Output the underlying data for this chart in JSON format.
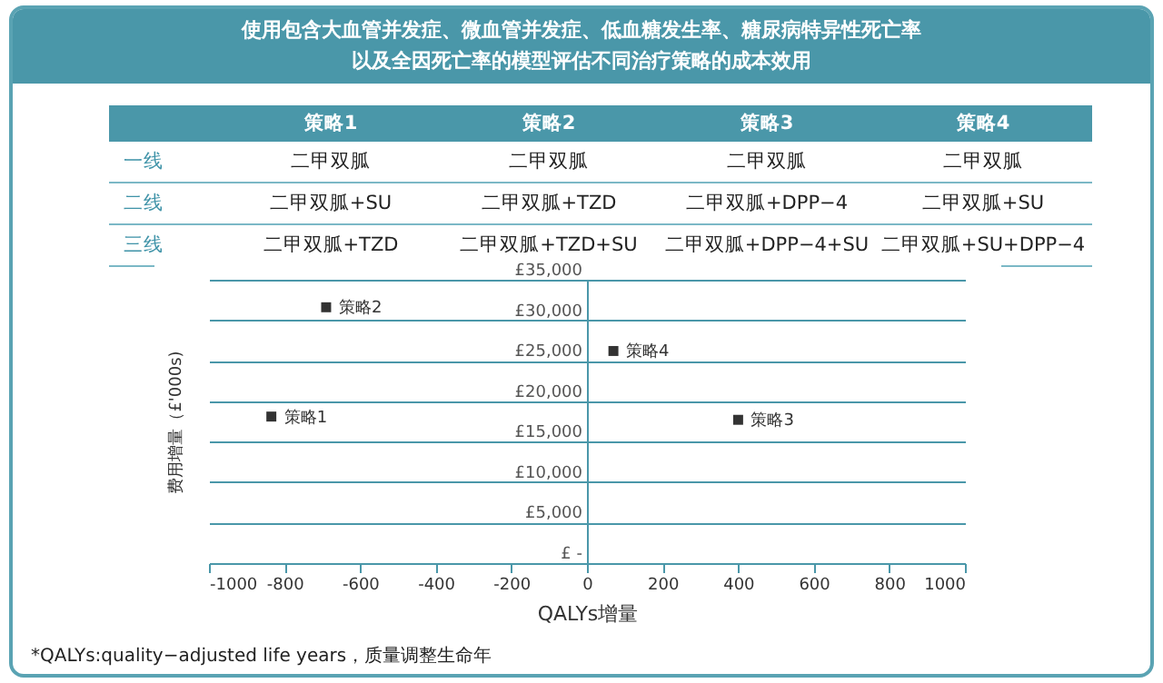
{
  "chart_data": {
    "type": "scatter",
    "title": "使用包含大血管并发症、微血管并发症、低血糖发生率、糖尿病特异性死亡率以及全因死亡率的模型评估不同治疗策略的成本效用",
    "xlabel": "QALYs增量",
    "ylabel": "费用增量（£'000s)",
    "xlim": [
      -1000,
      1000
    ],
    "xticks": [
      -1000,
      -800,
      -600,
      -400,
      -200,
      0,
      200,
      400,
      600,
      800,
      1000
    ],
    "ylim": [
      0,
      35000
    ],
    "yticks": [
      {
        "value": 0,
        "label": "£ -"
      },
      {
        "value": 5000,
        "label": "£5,000"
      },
      {
        "value": 10000,
        "label": "£10,000"
      },
      {
        "value": 15000,
        "label": "£15,000"
      },
      {
        "value": 20000,
        "label": "£20,000"
      },
      {
        "value": 25000,
        "label": "£25,000"
      },
      {
        "value": 30000,
        "label": "£30,000"
      },
      {
        "value": 35000,
        "label": "£35,000"
      }
    ],
    "grid": "y",
    "marker": "square",
    "series": [
      {
        "name": "策略1",
        "color": "#333333",
        "x": [
          -835
        ],
        "values": [
          18100
        ]
      },
      {
        "name": "策略2",
        "color": "#333333",
        "x": [
          -690
        ],
        "values": [
          31600
        ]
      },
      {
        "name": "策略3",
        "color": "#333333",
        "x": [
          400
        ],
        "values": [
          17700
        ]
      },
      {
        "name": "策略4",
        "color": "#333333",
        "x": [
          70
        ],
        "values": [
          26200
        ]
      }
    ],
    "annotations": [
      "策略1",
      "策略2",
      "策略3",
      "策略4",
      "一线",
      "二甲双胍",
      "二甲双胍",
      "二甲双胍",
      "二甲双胍",
      "二线",
      "二甲双胍+SU",
      "二甲双胍+TZD",
      "二甲双胍+DPP−4",
      "二甲双胍+SU",
      "三线",
      "二甲双胍+TZD",
      "二甲双胍+TZD+SU",
      "二甲双胍+DPP−4+SU",
      "二甲双胍+SU+DPP−4",
      "*QALYs:quality−adjusted life years，质量调整生命年"
    ]
  }
}
